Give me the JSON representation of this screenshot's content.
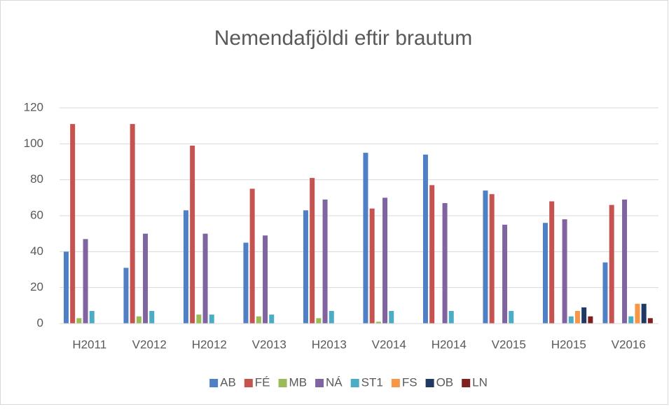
{
  "chart_data": {
    "type": "bar",
    "title": "Nemendafjöldi eftir brautum",
    "categories": [
      "H2011",
      "V2012",
      "H2012",
      "V2013",
      "H2013",
      "V2014",
      "H2014",
      "V2015",
      "H2015",
      "V2016"
    ],
    "series": [
      {
        "name": "AB",
        "color": "#4f7fc4",
        "values": [
          40,
          31,
          63,
          45,
          63,
          95,
          94,
          74,
          56,
          34
        ]
      },
      {
        "name": "FÉ",
        "color": "#c55350",
        "values": [
          111,
          111,
          99,
          75,
          81,
          64,
          77,
          72,
          68,
          66
        ]
      },
      {
        "name": "MB",
        "color": "#9bbb59",
        "values": [
          3,
          4,
          5,
          4,
          3,
          1,
          0,
          0,
          0,
          0
        ]
      },
      {
        "name": "NÁ",
        "color": "#8064a2",
        "values": [
          47,
          50,
          50,
          49,
          69,
          70,
          67,
          55,
          58,
          69
        ]
      },
      {
        "name": "ST1",
        "color": "#4bacc6",
        "values": [
          7,
          7,
          5,
          5,
          7,
          7,
          7,
          7,
          4,
          4
        ]
      },
      {
        "name": "FS",
        "color": "#f79646",
        "values": [
          0,
          0,
          0,
          0,
          0,
          0,
          0,
          0,
          7,
          11
        ]
      },
      {
        "name": "OB",
        "color": "#1f3864",
        "values": [
          0,
          0,
          0,
          0,
          0,
          0,
          0,
          0,
          9,
          11
        ]
      },
      {
        "name": "LN",
        "color": "#7f1f1f",
        "values": [
          0,
          0,
          0,
          0,
          0,
          0,
          0,
          0,
          4,
          3
        ]
      }
    ],
    "ylim": [
      0,
      120
    ],
    "yticks": [
      0,
      20,
      40,
      60,
      80,
      100,
      120
    ],
    "grid": true,
    "legend": "bottom"
  }
}
